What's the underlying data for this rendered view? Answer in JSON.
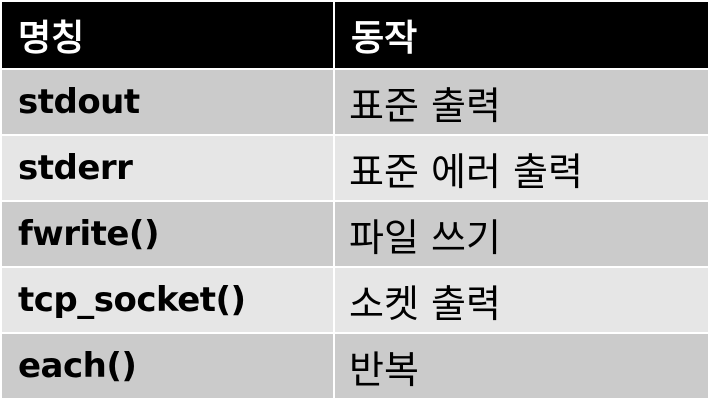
{
  "table": {
    "headers": [
      "명칭",
      "동작"
    ],
    "rows": [
      {
        "name": "stdout",
        "action": "표준 출력"
      },
      {
        "name": "stderr",
        "action": "표준 에러 출력"
      },
      {
        "name": "fwrite()",
        "action": "파일 쓰기"
      },
      {
        "name": "tcp_socket()",
        "action": "소켓 출력"
      },
      {
        "name": "each()",
        "action": "반복"
      }
    ]
  },
  "colors": {
    "header_bg": "#000000",
    "header_text": "#ffffff",
    "row_dark": "#cbcbcb",
    "row_light": "#e6e6e6"
  }
}
